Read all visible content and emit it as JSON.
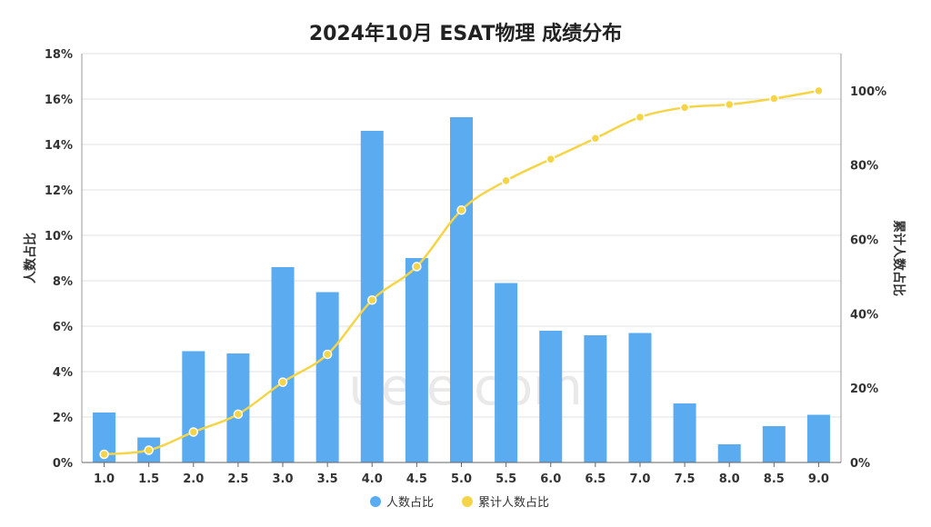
{
  "chart_data": {
    "type": "bar",
    "title": "2024年10月 ESAT物理 成绩分布",
    "categories": [
      "1.0",
      "1.5",
      "2.0",
      "2.5",
      "3.0",
      "3.5",
      "4.0",
      "4.5",
      "5.0",
      "5.5",
      "6.0",
      "6.5",
      "7.0",
      "7.5",
      "8.0",
      "8.5",
      "9.0"
    ],
    "series": [
      {
        "name": "人数占比",
        "type": "bar",
        "axis": "left",
        "color": "#5aabf0",
        "values": [
          2.2,
          1.1,
          4.9,
          4.8,
          8.6,
          7.5,
          14.6,
          9.0,
          15.2,
          7.9,
          5.8,
          5.6,
          5.7,
          2.6,
          0.8,
          1.6,
          2.1
        ]
      },
      {
        "name": "累计人数占比",
        "type": "line",
        "axis": "right",
        "color": "#f5d547",
        "values": [
          2.2,
          3.3,
          8.2,
          13.0,
          21.6,
          29.1,
          43.7,
          52.7,
          67.9,
          75.8,
          81.6,
          87.2,
          92.9,
          95.5,
          96.3,
          97.9,
          100.0
        ]
      }
    ],
    "ylabel": "人数占比",
    "y2label": "累计人数占比",
    "ylim": [
      0,
      18
    ],
    "yticks": [
      "0%",
      "2%",
      "4%",
      "6%",
      "8%",
      "10%",
      "12%",
      "14%",
      "16%",
      "18%"
    ],
    "y2lim": [
      0,
      110
    ],
    "y2ticks": [
      "0%",
      "20%",
      "40%",
      "60%",
      "80%",
      "100%"
    ],
    "grid": true,
    "legend": "bottom",
    "watermark": "ueie.com"
  }
}
